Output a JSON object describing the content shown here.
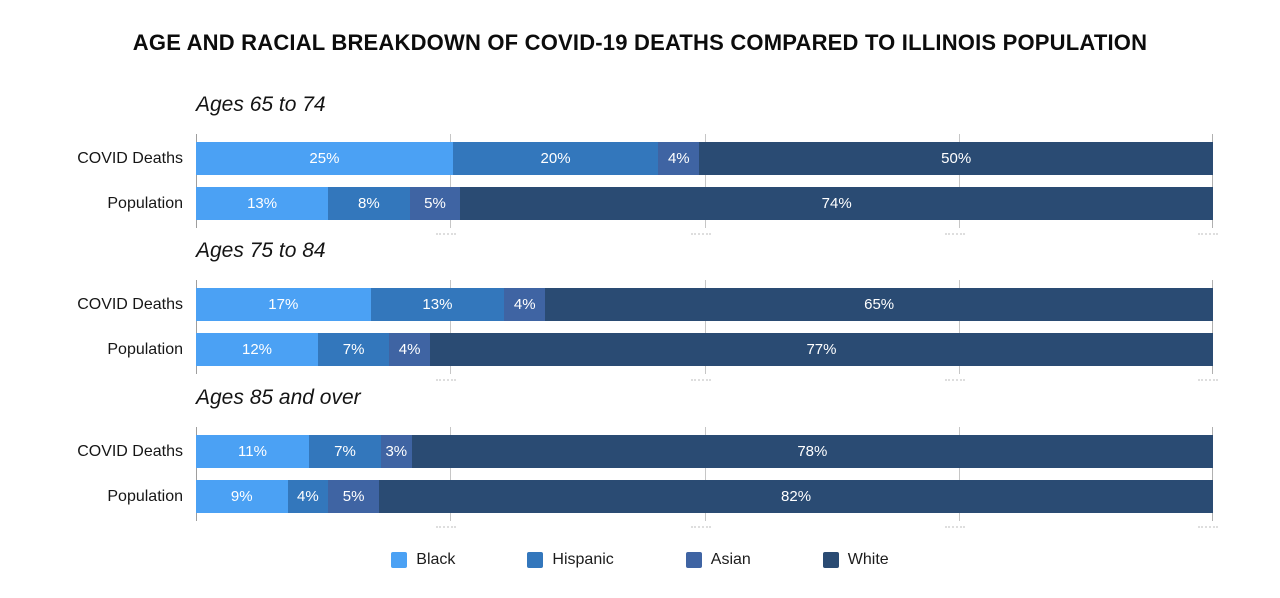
{
  "title": "AGE AND RACIAL BREAKDOWN OF COVID-19 DEATHS COMPARED TO ILLINOIS POPULATION",
  "colors": {
    "black": "#4BA1F4",
    "hispanic": "#3377BC",
    "asian": "#3F64A3",
    "white": "#2A4B73",
    "gridline": "#c6c6c6",
    "axis_line": "#9e9e9e",
    "bar_label_text": "#ffffff"
  },
  "legend": [
    {
      "label": "Black"
    },
    {
      "label": "Hispanic"
    },
    {
      "label": "Asian"
    },
    {
      "label": "White"
    }
  ],
  "chart_data": {
    "type": "bar",
    "orientation": "horizontal",
    "stacked": true,
    "unit": "%",
    "title": "AGE AND RACIAL BREAKDOWN OF COVID-19 DEATHS COMPARED TO ILLINOIS POPULATION",
    "series_names": [
      "Black",
      "Hispanic",
      "Asian",
      "White"
    ],
    "x_axis": {
      "min": 0,
      "max": 100,
      "gridline_step_pct": 25,
      "tick_positions_pct": [
        0,
        25,
        50,
        75,
        100
      ],
      "tick_labels_visible": false
    },
    "legend_position": "bottom",
    "groups": [
      {
        "header": "Ages 65 to 74",
        "rows": [
          {
            "label": "COVID Deaths",
            "segments": [
              {
                "name": "Black",
                "value": 25,
                "label": "25%"
              },
              {
                "name": "Hispanic",
                "value": 20,
                "label": "20%"
              },
              {
                "name": "Asian",
                "value": 4,
                "label": "4%"
              },
              {
                "name": "White",
                "value": 50,
                "label": "50%"
              }
            ]
          },
          {
            "label": "Population",
            "segments": [
              {
                "name": "Black",
                "value": 13,
                "label": "13%"
              },
              {
                "name": "Hispanic",
                "value": 8,
                "label": "8%"
              },
              {
                "name": "Asian",
                "value": 5,
                "label": "5%"
              },
              {
                "name": "White",
                "value": 74,
                "label": "74%"
              }
            ]
          }
        ]
      },
      {
        "header": "Ages 75 to 84",
        "rows": [
          {
            "label": "COVID Deaths",
            "segments": [
              {
                "name": "Black",
                "value": 17,
                "label": "17%"
              },
              {
                "name": "Hispanic",
                "value": 13,
                "label": "13%"
              },
              {
                "name": "Asian",
                "value": 4,
                "label": "4%"
              },
              {
                "name": "White",
                "value": 65,
                "label": "65%"
              }
            ]
          },
          {
            "label": "Population",
            "segments": [
              {
                "name": "Black",
                "value": 12,
                "label": "12%"
              },
              {
                "name": "Hispanic",
                "value": 7,
                "label": "7%"
              },
              {
                "name": "Asian",
                "value": 4,
                "label": "4%"
              },
              {
                "name": "White",
                "value": 77,
                "label": "77%"
              }
            ]
          }
        ]
      },
      {
        "header": "Ages 85 and over",
        "rows": [
          {
            "label": "COVID Deaths",
            "segments": [
              {
                "name": "Black",
                "value": 11,
                "label": "11%"
              },
              {
                "name": "Hispanic",
                "value": 7,
                "label": "7%"
              },
              {
                "name": "Asian",
                "value": 3,
                "label": "3%"
              },
              {
                "name": "White",
                "value": 78,
                "label": "78%"
              }
            ]
          },
          {
            "label": "Population",
            "segments": [
              {
                "name": "Black",
                "value": 9,
                "label": "9%"
              },
              {
                "name": "Hispanic",
                "value": 4,
                "label": "4%"
              },
              {
                "name": "Asian",
                "value": 5,
                "label": "5%"
              },
              {
                "name": "White",
                "value": 82,
                "label": "82%"
              }
            ]
          }
        ]
      }
    ]
  }
}
